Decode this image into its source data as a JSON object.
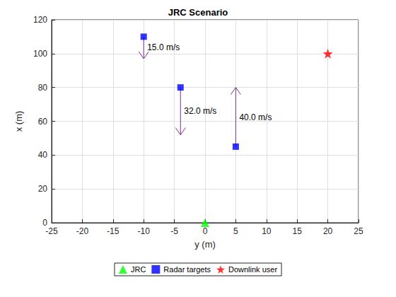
{
  "chart_data": {
    "type": "scatter",
    "title": "JRC Scenario",
    "xlabel": "y (m)",
    "ylabel": "x (m)",
    "xlim": [
      -25,
      25
    ],
    "xticks": [
      -25,
      -20,
      -15,
      -10,
      -5,
      0,
      5,
      10,
      15,
      20,
      25
    ],
    "ylim": [
      0,
      120
    ],
    "yticks": [
      0,
      20,
      40,
      60,
      80,
      100,
      120
    ],
    "grid": true,
    "legend": "south",
    "series": [
      {
        "name": "JRC",
        "color": "#00ff00",
        "marker": "triangle",
        "x": [
          0
        ],
        "y": [
          0
        ]
      },
      {
        "name": "Radar targets",
        "color": "#0000ff",
        "marker": "square",
        "x": [
          -10,
          -4,
          5
        ],
        "y": [
          110,
          80,
          45
        ],
        "velocity_labels": [
          "15.0 m/s",
          "32.0 m/s",
          "40.0 m/s"
        ],
        "arrow_tips": [
          [
            -10,
            97
          ],
          [
            -4,
            52
          ],
          [
            5,
            80
          ]
        ]
      },
      {
        "name": "Downlink user",
        "color": "#ff0000",
        "marker": "star",
        "x": [
          20
        ],
        "y": [
          100
        ]
      }
    ]
  }
}
